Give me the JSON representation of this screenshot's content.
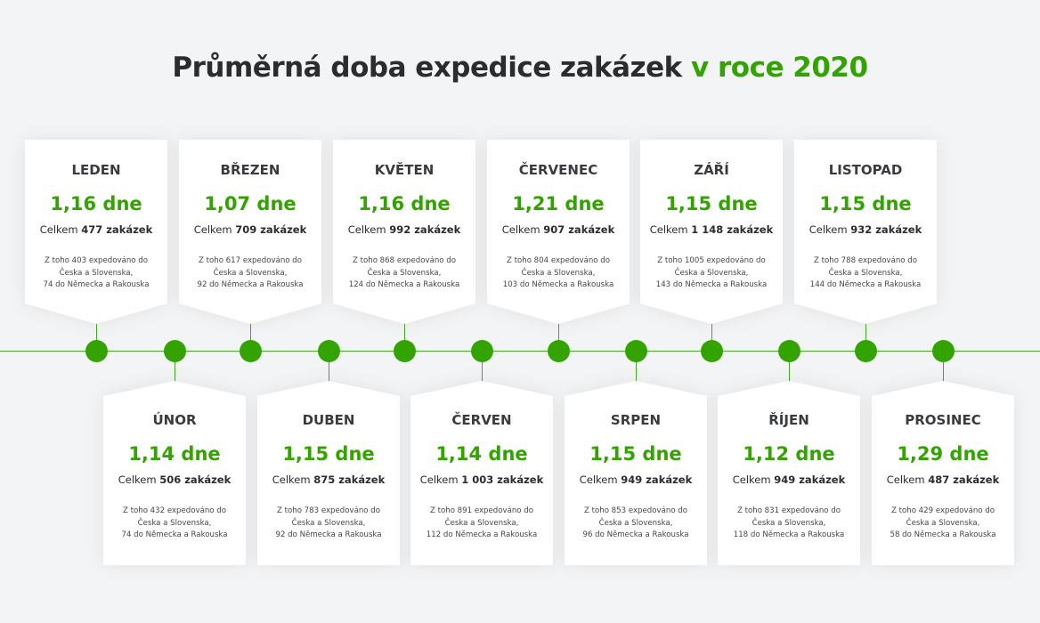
{
  "title": {
    "main": "Průměrná doba expedice zakázek",
    "accent": "v roce 2020"
  },
  "colors": {
    "accent": "#33a300",
    "text": "#2b2c30",
    "background": "#f3f4f6"
  },
  "months": [
    {
      "name": "LEDEN",
      "value": "1,16 dne",
      "total_prefix": "Celkem",
      "total": "477 zakázek",
      "line1": "Z toho 403 expedováno do",
      "line2": "Česka a Slovenska,",
      "line3": "74 do Německa a Rakouska"
    },
    {
      "name": "ÚNOR",
      "value": "1,14 dne",
      "total_prefix": "Celkem",
      "total": "506 zakázek",
      "line1": "Z toho 432 expedováno do",
      "line2": "Česka a Slovenska,",
      "line3": "74 do Německa a Rakouska"
    },
    {
      "name": "BŘEZEN",
      "value": "1,07 dne",
      "total_prefix": "Celkem",
      "total": "709 zakázek",
      "line1": "Z toho 617 expedováno do",
      "line2": "Česka a Slovenska,",
      "line3": "92 do Německa a Rakouska"
    },
    {
      "name": "DUBEN",
      "value": "1,15 dne",
      "total_prefix": "Celkem",
      "total": "875 zakázek",
      "line1": "Z toho 783 expedováno do",
      "line2": "Česka a Slovenska,",
      "line3": "92 do Německa a Rakouska"
    },
    {
      "name": "KVĚTEN",
      "value": "1,16 dne",
      "total_prefix": "Celkem",
      "total": "992 zakázek",
      "line1": "Z toho 868 expedováno do",
      "line2": "Česka a Slovenska,",
      "line3": "124 do Německa a Rakouska"
    },
    {
      "name": "ČERVEN",
      "value": "1,14 dne",
      "total_prefix": "Celkem",
      "total": "1 003 zakázek",
      "line1": "Z toho 891 expedováno do",
      "line2": "Česka a Slovenska,",
      "line3": "112 do Německa a Rakouska"
    },
    {
      "name": "ČERVENEC",
      "value": "1,21 dne",
      "total_prefix": "Celkem",
      "total": "907 zakázek",
      "line1": "Z toho 804 expedováno do",
      "line2": "Česka a Slovenska,",
      "line3": "103 do Německa a Rakouska"
    },
    {
      "name": "SRPEN",
      "value": "1,15 dne",
      "total_prefix": "Celkem",
      "total": "949 zakázek",
      "line1": "Z toho 853 expedováno do",
      "line2": "Česka a Slovenska,",
      "line3": "96 do Německa a Rakouska"
    },
    {
      "name": "ZÁŘÍ",
      "value": "1,15 dne",
      "total_prefix": "Celkem",
      "total": "1 148 zakázek",
      "line1": "Z toho 1005 expedováno do",
      "line2": "Česka a Slovenska,",
      "line3": "143 do Německa a Rakouska"
    },
    {
      "name": "ŘÍJEN",
      "value": "1,12 dne",
      "total_prefix": "Celkem",
      "total": "949 zakázek",
      "line1": "Z toho 831 expedováno do",
      "line2": "Česka a Slovenska,",
      "line3": "118 do Německa a Rakouska"
    },
    {
      "name": "LISTOPAD",
      "value": "1,15 dne",
      "total_prefix": "Celkem",
      "total": "932 zakázek",
      "line1": "Z toho 788 expedováno do",
      "line2": "Česka a Slovenska,",
      "line3": "144 do Německa a Rakouska"
    },
    {
      "name": "PROSINEC",
      "value": "1,29 dne",
      "total_prefix": "Celkem",
      "total": "487 zakázek",
      "line1": "Z toho 429 expedováno do",
      "line2": "Česka a Slovenska,",
      "line3": "58 do Německa a Rakouska"
    }
  ]
}
